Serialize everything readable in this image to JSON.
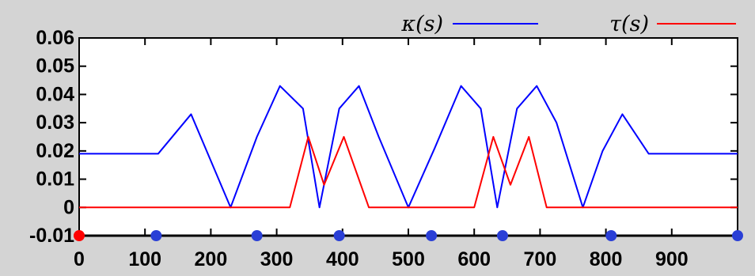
{
  "chart_data": {
    "type": "line",
    "title": "",
    "xlabel": "",
    "ylabel": "",
    "xlim": [
      0,
      1000
    ],
    "ylim": [
      -0.01,
      0.06
    ],
    "x_ticks": [
      0,
      100,
      200,
      300,
      400,
      500,
      600,
      700,
      800,
      900
    ],
    "x_tick_labels": [
      "0",
      "100",
      "200",
      "300",
      "400",
      "500",
      "600",
      "700",
      "800",
      "900"
    ],
    "y_ticks": [
      -0.01,
      0,
      0.01,
      0.02,
      0.03,
      0.04,
      0.05,
      0.06
    ],
    "y_tick_labels": [
      "-0.01",
      "0",
      "0.01",
      "0.02",
      "0.03",
      "0.04",
      "0.05",
      "0.06"
    ],
    "grid": false,
    "legend": "top-right",
    "series": [
      {
        "name": "κ(s)",
        "color": "#0000ff",
        "x": [
          0,
          120,
          170,
          230,
          270,
          305,
          340,
          365,
          395,
          425,
          455,
          500,
          540,
          580,
          610,
          635,
          665,
          695,
          725,
          765,
          795,
          825,
          865,
          900,
          1000
        ],
        "y": [
          0.019,
          0.019,
          0.033,
          0.0,
          0.025,
          0.043,
          0.035,
          0.0,
          0.035,
          0.043,
          0.025,
          0.0,
          0.021,
          0.043,
          0.035,
          0.0,
          0.035,
          0.043,
          0.03,
          0.0,
          0.02,
          0.033,
          0.019,
          0.019,
          0.019
        ]
      },
      {
        "name": "τ(s)",
        "color": "#ff0000",
        "x": [
          0,
          320,
          348,
          372,
          402,
          440,
          600,
          629,
          655,
          683,
          710,
          1000
        ],
        "y": [
          0,
          0,
          0.025,
          0.008,
          0.025,
          0,
          0,
          0.025,
          0.008,
          0.025,
          0,
          0
        ]
      }
    ],
    "markers": {
      "y": -0.01,
      "x": [
        0,
        117,
        270,
        395,
        535,
        643,
        808,
        1000
      ],
      "colors": [
        "#ff0000",
        "#2a3fd6",
        "#2a3fd6",
        "#2a3fd6",
        "#2a3fd6",
        "#2a3fd6",
        "#2a3fd6",
        "#2a3fd6"
      ]
    },
    "legend_entries": [
      {
        "label": "κ(s)",
        "color": "#0000ff"
      },
      {
        "label": "τ(s)",
        "color": "#ff0000"
      }
    ]
  }
}
